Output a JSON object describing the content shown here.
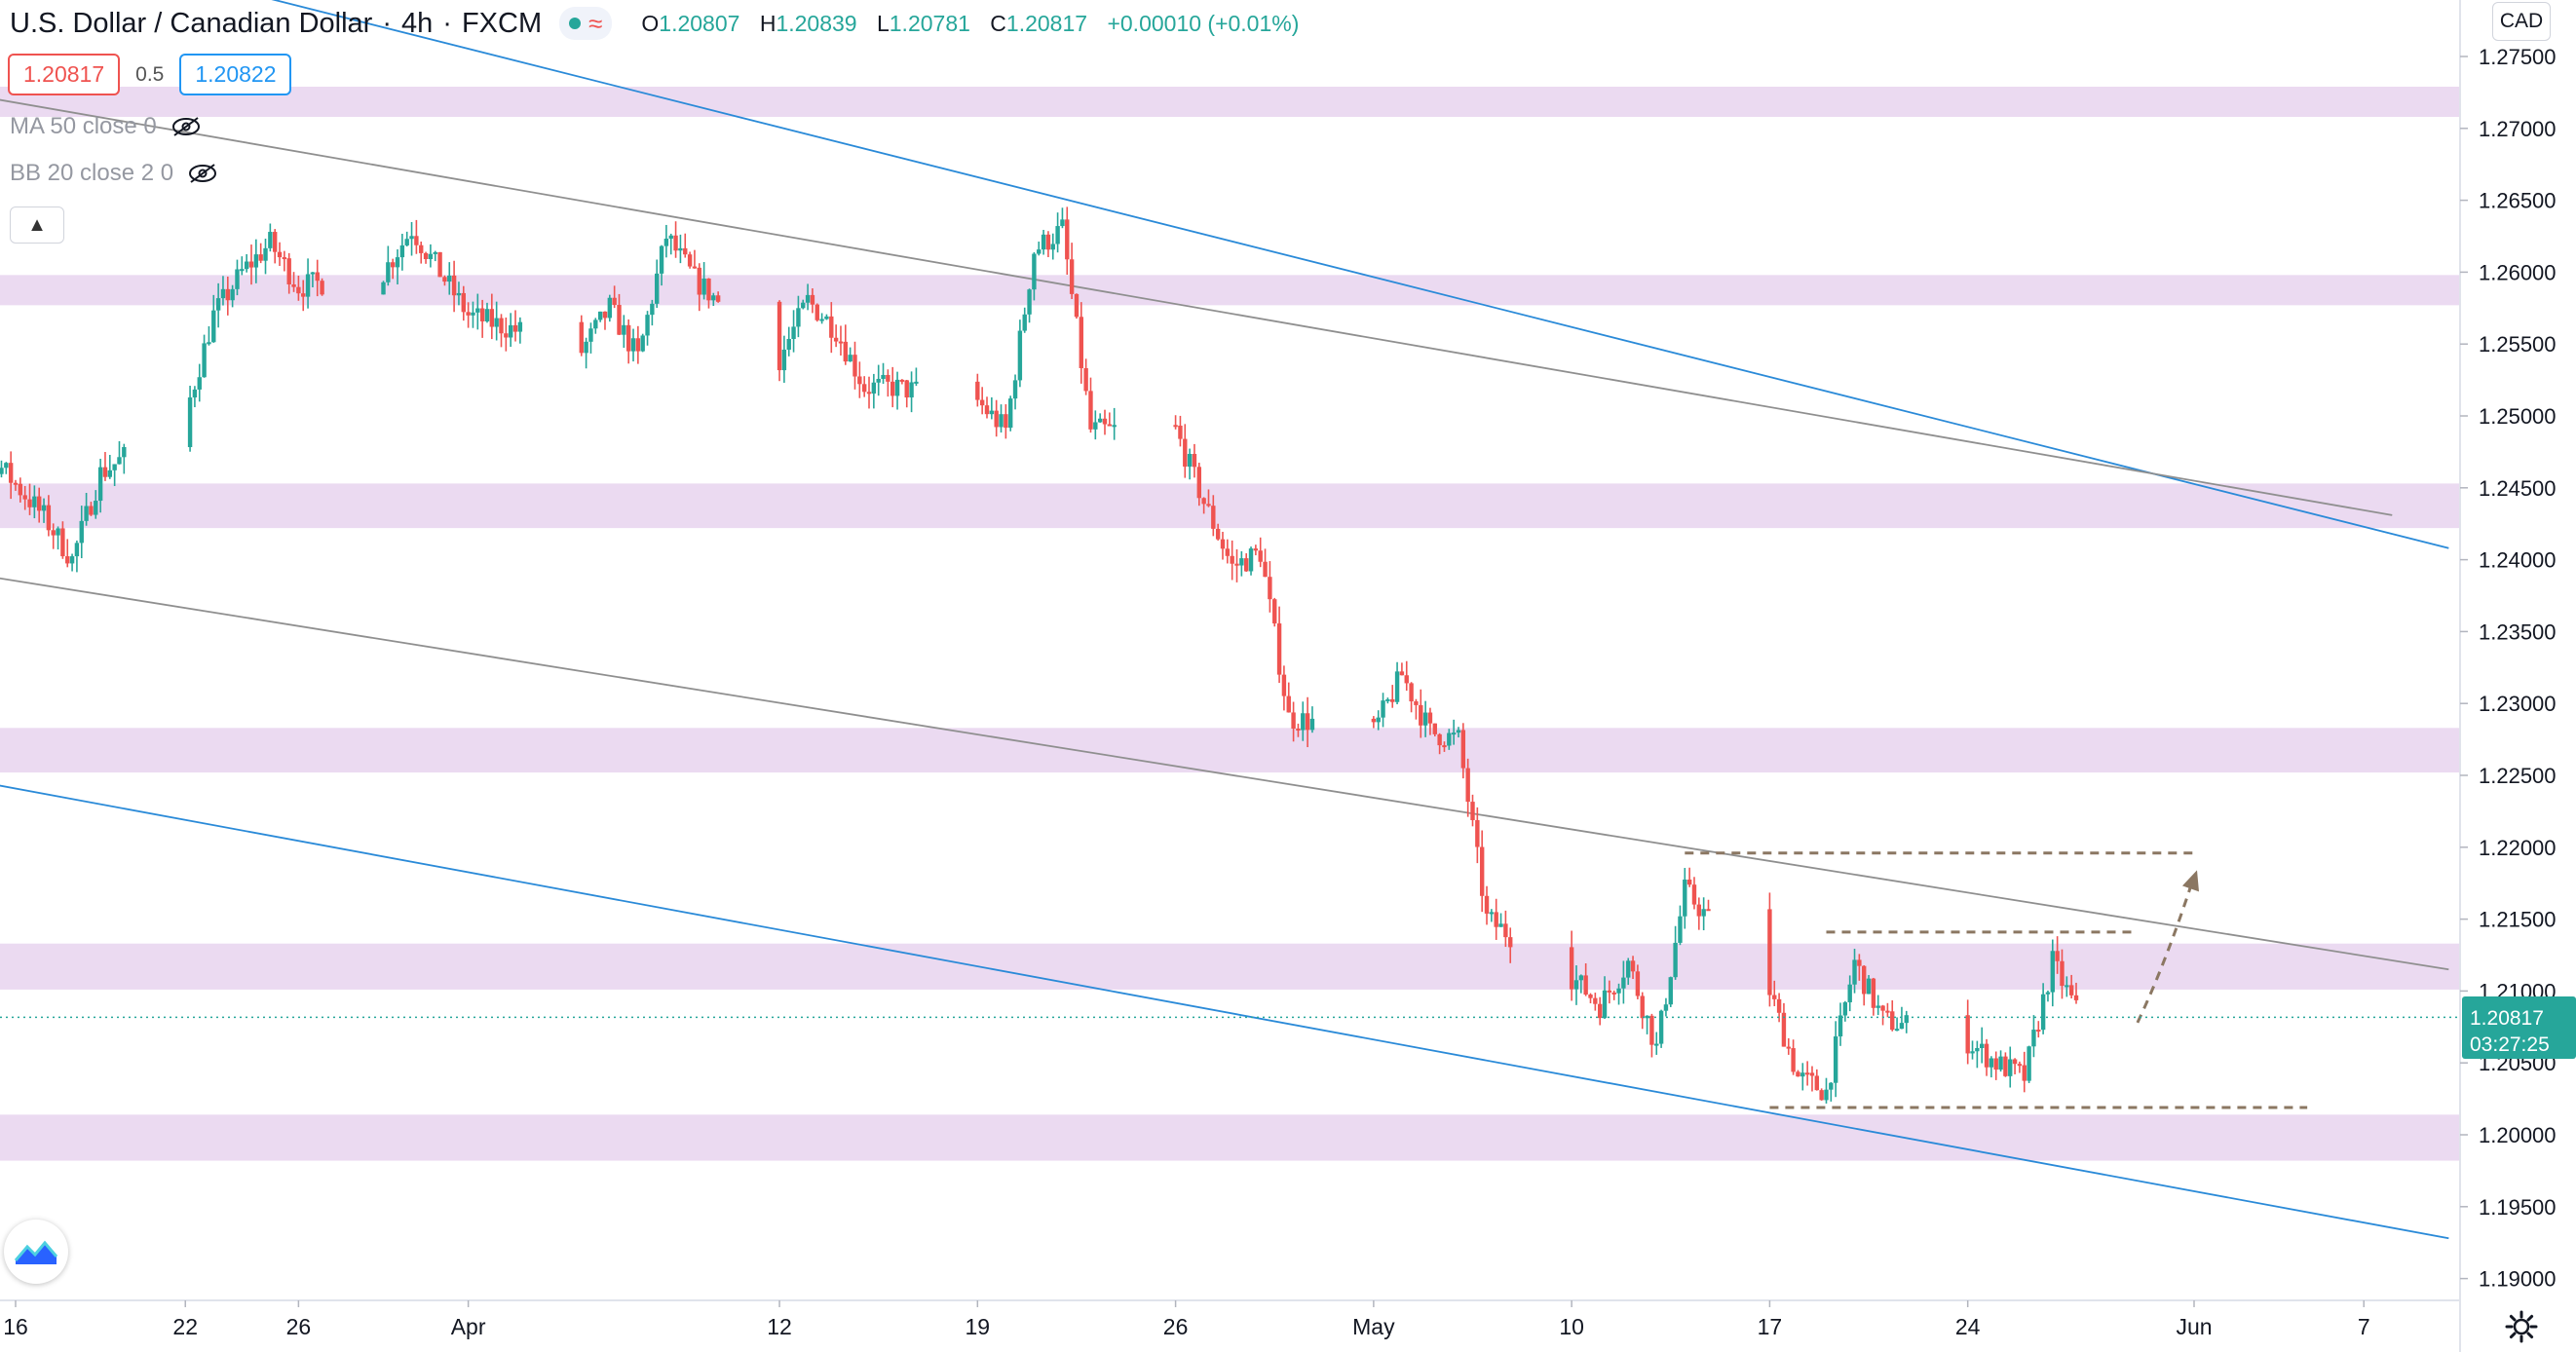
{
  "header": {
    "symbol": "U.S. Dollar / Canadian Dollar",
    "interval": "4h",
    "exchange": "FXCM",
    "open_label": "O",
    "open": "1.20807",
    "high_label": "H",
    "high": "1.20839",
    "low_label": "L",
    "low": "1.20781",
    "close_label": "C",
    "close": "1.20817",
    "change": "+0.00010 (+0.01%)"
  },
  "quote": {
    "bid": "1.20817",
    "spread": "0.5",
    "ask": "1.20822"
  },
  "indicators": [
    {
      "label": "MA 50 close 0",
      "icon": "eye-off-icon"
    },
    {
      "label": "BB 20 close 2 0",
      "icon": "eye-off-icon"
    }
  ],
  "currency": "CAD",
  "last_price": {
    "value": "1.20817",
    "countdown": "03:27:25"
  },
  "colors": {
    "up": "#26a69a",
    "down": "#ef5350",
    "zone": "#e8d4ee",
    "channel_blue": "#2a8ad8",
    "trend_gray": "#8f8f8f",
    "annotation": "#8b7762",
    "last_price": "#26a69a"
  },
  "chart_data": {
    "type": "candlestick",
    "title": "U.S. Dollar / Canadian Dollar",
    "timeframe": "4h",
    "y_ticks": [
      "1.27500",
      "1.27000",
      "1.26500",
      "1.26000",
      "1.25500",
      "1.25000",
      "1.24500",
      "1.24000",
      "1.23500",
      "1.23000",
      "1.22500",
      "1.22000",
      "1.21500",
      "1.21000",
      "1.20500",
      "1.20000",
      "1.19500",
      "1.19000"
    ],
    "y_tick_values": [
      1.275,
      1.27,
      1.265,
      1.26,
      1.255,
      1.25,
      1.245,
      1.24,
      1.235,
      1.23,
      1.225,
      1.22,
      1.215,
      1.21,
      1.205,
      1.2,
      1.195,
      1.19
    ],
    "ylim": [
      1.1865,
      1.2778
    ],
    "x_ticks": [
      {
        "label": "16",
        "date": "2021-03-16"
      },
      {
        "label": "22",
        "date": "2021-03-22"
      },
      {
        "label": "26",
        "date": "2021-03-26"
      },
      {
        "label": "Apr",
        "date": "2021-04-01"
      },
      {
        "label": "12",
        "date": "2021-04-12"
      },
      {
        "label": "19",
        "date": "2021-04-19"
      },
      {
        "label": "26",
        "date": "2021-04-26"
      },
      {
        "label": "May",
        "date": "2021-05-03"
      },
      {
        "label": "10",
        "date": "2021-05-10"
      },
      {
        "label": "17",
        "date": "2021-05-17"
      },
      {
        "label": "24",
        "date": "2021-05-24"
      },
      {
        "label": "Jun",
        "date": "2021-06-01"
      },
      {
        "label": "7",
        "date": "2021-06-07"
      }
    ],
    "horizontal_zones": [
      {
        "low": 1.2708,
        "high": 1.2729
      },
      {
        "low": 1.2577,
        "high": 1.2598
      },
      {
        "low": 1.2422,
        "high": 1.2453
      },
      {
        "low": 1.2252,
        "high": 1.2283
      },
      {
        "low": 1.2101,
        "high": 1.2133
      },
      {
        "low": 1.1982,
        "high": 1.2014
      }
    ],
    "trend_lines": [
      {
        "style": "blue",
        "from": {
          "date": "2021-03-22",
          "price": 1.2805
        },
        "to": {
          "date": "2021-06-10",
          "price": 1.2408
        }
      },
      {
        "style": "blue",
        "from": {
          "date": "2021-03-11",
          "price": 1.2259
        },
        "to": {
          "date": "2021-06-10",
          "price": 1.1928
        }
      },
      {
        "style": "gray",
        "from": {
          "date": "2021-03-11",
          "price": 1.2735
        },
        "to": {
          "date": "2021-06-08",
          "price": 1.2431
        }
      },
      {
        "style": "gray",
        "from": {
          "date": "2021-03-11",
          "price": 1.2401
        },
        "to": {
          "date": "2021-06-10",
          "price": 1.2115
        }
      }
    ],
    "annotations": [
      {
        "kind": "dashed-level",
        "price": 1.2196,
        "from": "2021-05-14",
        "to": "2021-06-01"
      },
      {
        "kind": "dashed-level",
        "price": 1.2141,
        "from": "2021-05-19",
        "to": "2021-05-30"
      },
      {
        "kind": "dashed-level",
        "price": 1.2019,
        "from": "2021-05-17",
        "to": "2021-06-05"
      },
      {
        "kind": "dashed-arrow",
        "from": {
          "date": "2021-05-30",
          "price": 1.2078
        },
        "to": {
          "date": "2021-06-01",
          "price": 1.218
        }
      }
    ],
    "last_price": 1.20817,
    "anchors": [
      {
        "date": "2021-03-11",
        "price": 1.2475
      },
      {
        "date": "2021-03-15",
        "price": 1.2475
      },
      {
        "date": "2021-03-17",
        "price": 1.243
      },
      {
        "date": "2021-03-18",
        "price": 1.24
      },
      {
        "date": "2021-03-19",
        "price": 1.246
      },
      {
        "date": "2021-03-22",
        "price": 1.25
      },
      {
        "date": "2021-03-23",
        "price": 1.257
      },
      {
        "date": "2021-03-24",
        "price": 1.26
      },
      {
        "date": "2021-03-25",
        "price": 1.262
      },
      {
        "date": "2021-03-26",
        "price": 1.259
      },
      {
        "date": "2021-03-29",
        "price": 1.26
      },
      {
        "date": "2021-03-30",
        "price": 1.263
      },
      {
        "date": "2021-03-31",
        "price": 1.26
      },
      {
        "date": "2021-04-01",
        "price": 1.257
      },
      {
        "date": "2021-04-05",
        "price": 1.2545
      },
      {
        "date": "2021-04-06",
        "price": 1.2575
      },
      {
        "date": "2021-04-07",
        "price": 1.254
      },
      {
        "date": "2021-04-08",
        "price": 1.2625
      },
      {
        "date": "2021-04-09",
        "price": 1.2595
      },
      {
        "date": "2021-04-12",
        "price": 1.254
      },
      {
        "date": "2021-04-13",
        "price": 1.258
      },
      {
        "date": "2021-04-14",
        "price": 1.256
      },
      {
        "date": "2021-04-15",
        "price": 1.252
      },
      {
        "date": "2021-04-16",
        "price": 1.252
      },
      {
        "date": "2021-04-19",
        "price": 1.251
      },
      {
        "date": "2021-04-20",
        "price": 1.249
      },
      {
        "date": "2021-04-21",
        "price": 1.2615
      },
      {
        "date": "2021-04-22",
        "price": 1.263
      },
      {
        "date": "2021-04-23",
        "price": 1.249
      },
      {
        "date": "2021-04-26",
        "price": 1.249
      },
      {
        "date": "2021-04-27",
        "price": 1.244
      },
      {
        "date": "2021-04-28",
        "price": 1.2395
      },
      {
        "date": "2021-04-29",
        "price": 1.2405
      },
      {
        "date": "2021-04-30",
        "price": 1.229
      },
      {
        "date": "2021-05-03",
        "price": 1.228
      },
      {
        "date": "2021-05-04",
        "price": 1.232
      },
      {
        "date": "2021-05-05",
        "price": 1.228
      },
      {
        "date": "2021-05-06",
        "price": 1.2275
      },
      {
        "date": "2021-05-07",
        "price": 1.215
      },
      {
        "date": "2021-05-10",
        "price": 1.211
      },
      {
        "date": "2021-05-11",
        "price": 1.209
      },
      {
        "date": "2021-05-12",
        "price": 1.212
      },
      {
        "date": "2021-05-13",
        "price": 1.206
      },
      {
        "date": "2021-05-14",
        "price": 1.217
      },
      {
        "date": "2021-05-17",
        "price": 1.21
      },
      {
        "date": "2021-05-18",
        "price": 1.204
      },
      {
        "date": "2021-05-19",
        "price": 1.203
      },
      {
        "date": "2021-05-20",
        "price": 1.212
      },
      {
        "date": "2021-05-21",
        "price": 1.208
      },
      {
        "date": "2021-05-24",
        "price": 1.2065
      },
      {
        "date": "2021-05-25",
        "price": 1.205
      },
      {
        "date": "2021-05-26",
        "price": 1.204
      },
      {
        "date": "2021-05-27",
        "price": 1.212
      },
      {
        "date": "2021-05-28",
        "price": 1.208
      }
    ]
  }
}
